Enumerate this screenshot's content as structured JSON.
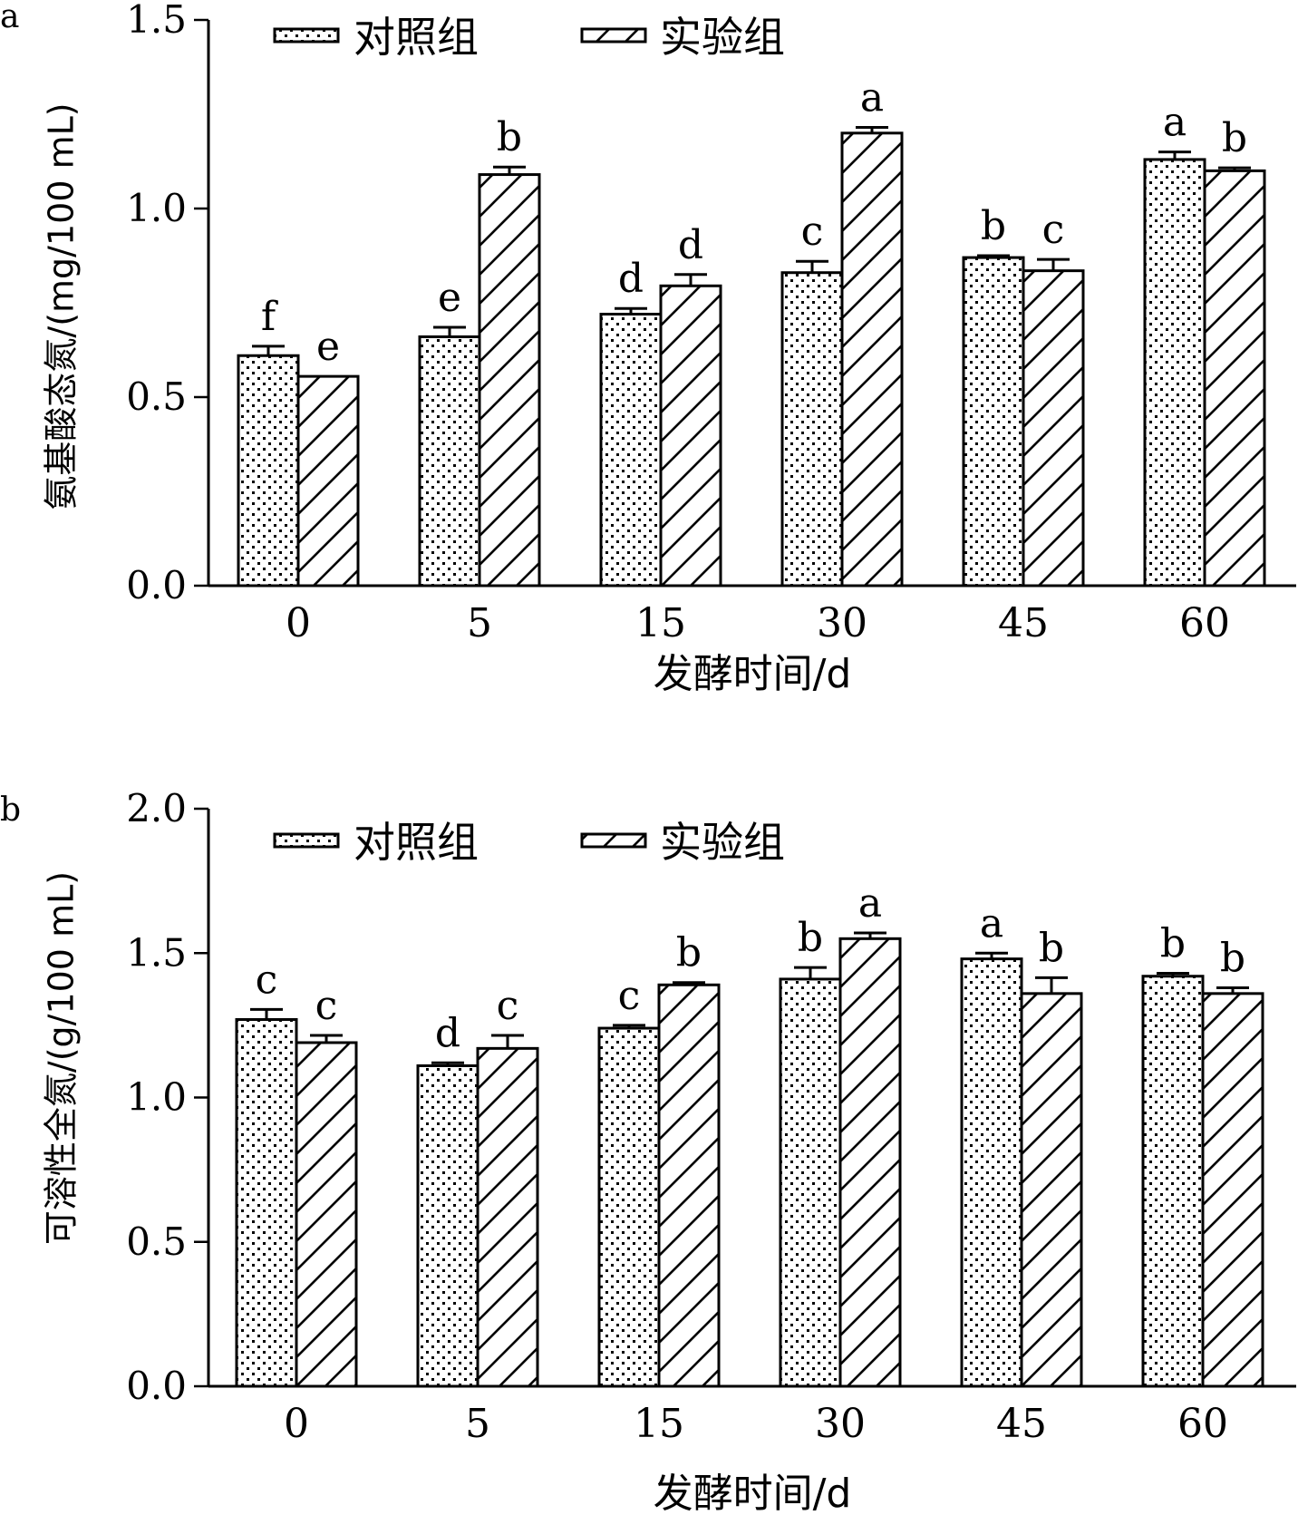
{
  "chart_data": [
    {
      "panel_label": "a",
      "type": "bar",
      "categories": [
        "0",
        "5",
        "15",
        "30",
        "45",
        "60"
      ],
      "series": [
        {
          "name": "对照组",
          "values": [
            0.61,
            0.66,
            0.72,
            0.83,
            0.87,
            1.13
          ],
          "errors": [
            0.025,
            0.025,
            0.015,
            0.03,
            0.005,
            0.02
          ],
          "letters": [
            "f",
            "e",
            "d",
            "c",
            "b",
            "a"
          ]
        },
        {
          "name": "实验组",
          "values": [
            0.555,
            1.09,
            0.795,
            1.2,
            0.835,
            1.1
          ],
          "errors": [
            0.0,
            0.02,
            0.03,
            0.015,
            0.03,
            0.008
          ],
          "letters": [
            "e",
            "b",
            "d",
            "a",
            "c",
            "b"
          ]
        }
      ],
      "xlabel": "发酵时间/d",
      "ylabel": "氨基酸态氮/(mg/100 mL)",
      "ylim": [
        0,
        1.5
      ],
      "yticks": [
        "0.0",
        "0.5",
        "1.0",
        "1.5"
      ],
      "legend": "top-left",
      "grid": false
    },
    {
      "panel_label": "b",
      "type": "bar",
      "categories": [
        "0",
        "5",
        "15",
        "30",
        "45",
        "60"
      ],
      "series": [
        {
          "name": "对照组",
          "values": [
            1.27,
            1.11,
            1.24,
            1.41,
            1.48,
            1.42
          ],
          "errors": [
            0.035,
            0.01,
            0.01,
            0.04,
            0.02,
            0.01
          ],
          "letters": [
            "c",
            "d",
            "c",
            "b",
            "a",
            "b"
          ]
        },
        {
          "name": "实验组",
          "values": [
            1.19,
            1.17,
            1.39,
            1.55,
            1.36,
            1.36
          ],
          "errors": [
            0.025,
            0.045,
            0.008,
            0.02,
            0.055,
            0.02
          ],
          "letters": [
            "c",
            "c",
            "b",
            "a",
            "b",
            "b"
          ]
        }
      ],
      "xlabel": "发酵时间/d",
      "ylabel": "可溶性全氮/(g/100 mL)",
      "ylim": [
        0,
        2.0
      ],
      "yticks": [
        "0.0",
        "0.5",
        "1.0",
        "1.5",
        "2.0"
      ],
      "legend": "top-left",
      "grid": false
    }
  ]
}
